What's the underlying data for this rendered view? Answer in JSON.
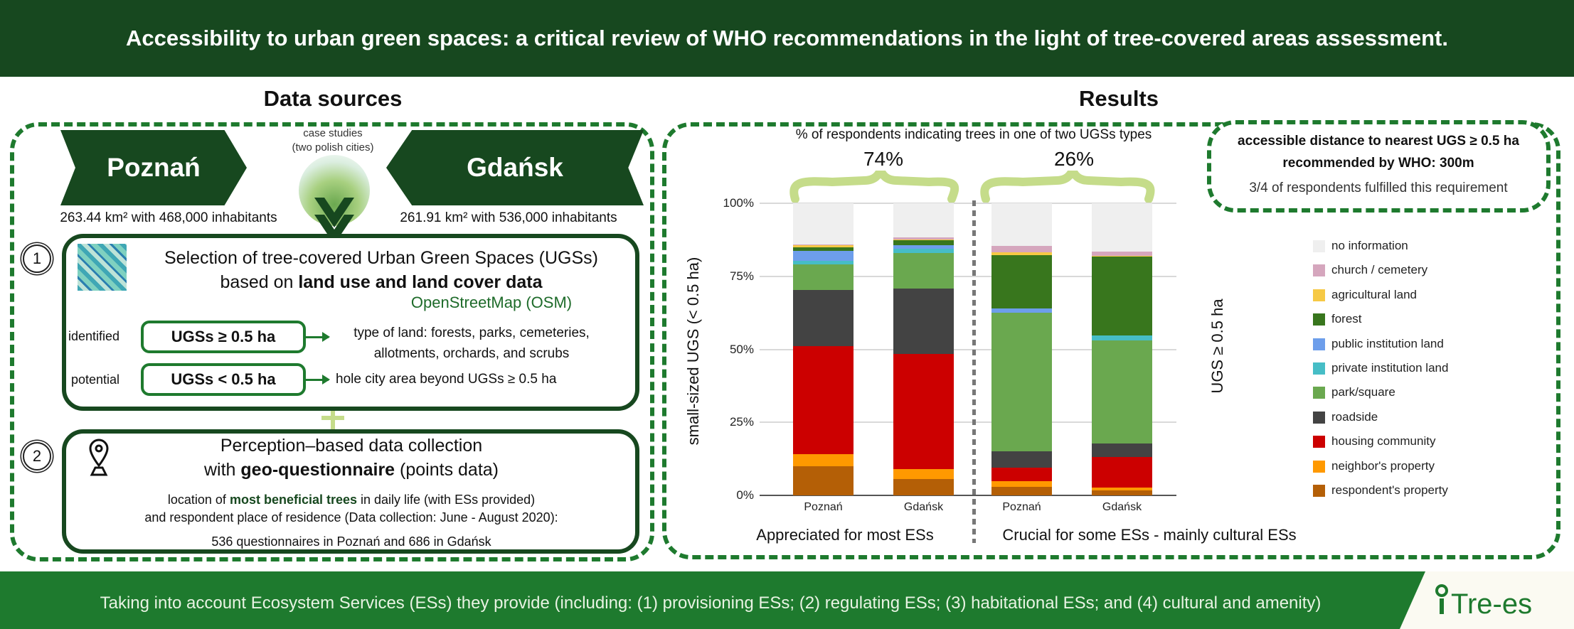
{
  "title": "Accessibility to urban green spaces: a critical review of WHO recommendations in the light of tree-covered areas assessment.",
  "data_sources": {
    "heading": "Data sources",
    "case_studies": [
      "case studies",
      "(two polish cities)"
    ],
    "cities": [
      {
        "name": "Poznań",
        "stats": "263.44 km² with 468,000 inhabitants"
      },
      {
        "name": "Gdańsk",
        "stats": "261.91 km² with 536,000 inhabitants"
      }
    ],
    "step1": {
      "number": "1",
      "line1": "Selection of tree-covered Urban Green Spaces (UGSs)",
      "line2_pre": "based on ",
      "line2_bold": "land use and land cover data",
      "source": "OpenStreetMap (OSM)",
      "rows": [
        {
          "label": "identified",
          "box": "UGSs ≥ 0.5 ha",
          "desc": [
            "type of land: forests, parks, cemeteries,",
            "allotments, orchards, and scrubs"
          ]
        },
        {
          "label": "potential",
          "box": "UGSs < 0.5 ha",
          "desc": [
            "hole city area beyond UGSs ≥ 0.5 ha"
          ]
        }
      ]
    },
    "step2": {
      "number": "2",
      "line1": "Perception–based data collection",
      "line2_pre": "with ",
      "line2_bold": "geo-questionnaire",
      "line2_post": " (points data)",
      "detail1_pre": "location of ",
      "detail1_bold": "most beneficial trees",
      "detail1_post": " in daily life (with ESs provided)",
      "detail2": "and respondent  place of residence (Data collection: June - August 2020):",
      "detail3": "536 questionnaires in Poznań and 686 in Gdańsk"
    }
  },
  "results": {
    "heading": "Results",
    "who_box": {
      "line1": "accessible distance to nearest UGS ≥ 0.5 ha",
      "line2": "recommended by WHO: 300m",
      "line3": "3/4 of respondents fulfilled this requirement"
    },
    "group_labels": [
      "Appreciated for most ESs",
      "Crucial for some ESs - mainly cultural ESs"
    ]
  },
  "chart_data": {
    "type": "bar",
    "stacked": true,
    "title": "% of respondents indicating trees in one of two UGSs types",
    "group_shares": [
      "74%",
      "26%"
    ],
    "ylabel": "small-sized UGS (< 0.5 ha)",
    "ylabel_right": "UGS ≥ 0.5 ha",
    "ylim": [
      0,
      100
    ],
    "yticks": [
      "0%",
      "25%",
      "50%",
      "75%",
      "100%"
    ],
    "categories": [
      "Poznań",
      "Gdańsk",
      "Poznań",
      "Gdańsk"
    ],
    "legend_position": "right",
    "series": [
      {
        "name": "respondent's property",
        "color": "#b45f06",
        "values": [
          9.9,
          5.7,
          3.0,
          1.8
        ]
      },
      {
        "name": "neighbor's property",
        "color": "#ff9900",
        "values": [
          4.3,
          3.4,
          1.8,
          0.9
        ]
      },
      {
        "name": "housing community",
        "color": "#cc0000",
        "values": [
          37.0,
          39.3,
          4.7,
          10.4
        ]
      },
      {
        "name": "roadside",
        "color": "#434343",
        "values": [
          19.1,
          22.5,
          5.6,
          4.7
        ]
      },
      {
        "name": "park/square",
        "color": "#6aa84f",
        "values": [
          8.8,
          12.1,
          47.4,
          35.3
        ]
      },
      {
        "name": "private institution land",
        "color": "#46bdc6",
        "values": [
          1.1,
          1.4,
          0.0,
          1.7
        ]
      },
      {
        "name": "public institution land",
        "color": "#6d9eeb",
        "values": [
          3.5,
          1.3,
          1.5,
          0.0
        ]
      },
      {
        "name": "forest",
        "color": "#38761d",
        "values": [
          1.3,
          1.7,
          18.3,
          26.9
        ]
      },
      {
        "name": "agricultural land",
        "color": "#f6c945",
        "values": [
          0.6,
          0.3,
          1.0,
          0.4
        ]
      },
      {
        "name": "church / cemetery",
        "color": "#d5a6bd",
        "values": [
          0.2,
          0.6,
          2.2,
          1.3
        ]
      },
      {
        "name": "no information",
        "color": "#efefef",
        "values": [
          14.2,
          11.7,
          14.5,
          16.6
        ]
      }
    ]
  },
  "footer": {
    "text": "Taking into account Ecosystem Services (ESs) they provide (including: (1) provisioning ESs; (2) regulating ESs; (3) habitational ESs; and (4) cultural and amenity)",
    "logo": "Tre-es"
  }
}
